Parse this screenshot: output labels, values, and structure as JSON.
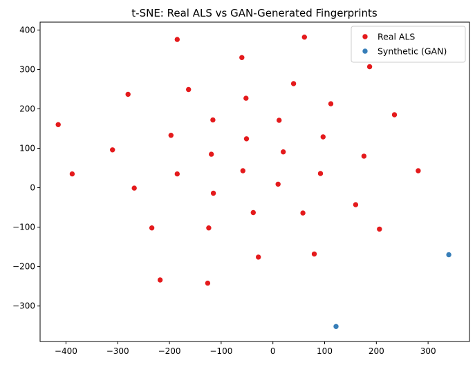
{
  "chart_data": {
    "type": "scatter",
    "title": "t-SNE: Real ALS vs GAN-Generated Fingerprints",
    "xlabel": "",
    "ylabel": "",
    "xlim": [
      -450,
      380
    ],
    "ylim": [
      -390,
      420
    ],
    "xticks": [
      -400,
      -300,
      -200,
      -100,
      0,
      100,
      200,
      300
    ],
    "yticks": [
      -300,
      -200,
      -100,
      0,
      100,
      200,
      300,
      400
    ],
    "grid": false,
    "legend_position": "top-right",
    "series": [
      {
        "name": "Real ALS",
        "color": "#e41a1c",
        "points": [
          [
            -415,
            160
          ],
          [
            -388,
            35
          ],
          [
            -310,
            96
          ],
          [
            -280,
            237
          ],
          [
            -268,
            -1
          ],
          [
            -234,
            -102
          ],
          [
            -218,
            -234
          ],
          [
            -197,
            133
          ],
          [
            -185,
            376
          ],
          [
            -185,
            35
          ],
          [
            -163,
            249
          ],
          [
            -126,
            -242
          ],
          [
            -124,
            -102
          ],
          [
            -119,
            85
          ],
          [
            -116,
            172
          ],
          [
            -115,
            -14
          ],
          [
            -60,
            330
          ],
          [
            -58,
            43
          ],
          [
            -52,
            227
          ],
          [
            -51,
            124
          ],
          [
            -38,
            -63
          ],
          [
            -28,
            -176
          ],
          [
            10,
            9
          ],
          [
            12,
            171
          ],
          [
            20,
            91
          ],
          [
            40,
            264
          ],
          [
            58,
            -64
          ],
          [
            61,
            382
          ],
          [
            80,
            -168
          ],
          [
            92,
            36
          ],
          [
            97,
            129
          ],
          [
            112,
            213
          ],
          [
            160,
            -43
          ],
          [
            176,
            80
          ],
          [
            187,
            307
          ],
          [
            206,
            -105
          ],
          [
            235,
            185
          ],
          [
            281,
            43
          ]
        ]
      },
      {
        "name": "Synthetic (GAN)",
        "color": "#377eb8",
        "points": [
          [
            122,
            -352
          ],
          [
            340,
            -170
          ]
        ]
      }
    ]
  }
}
